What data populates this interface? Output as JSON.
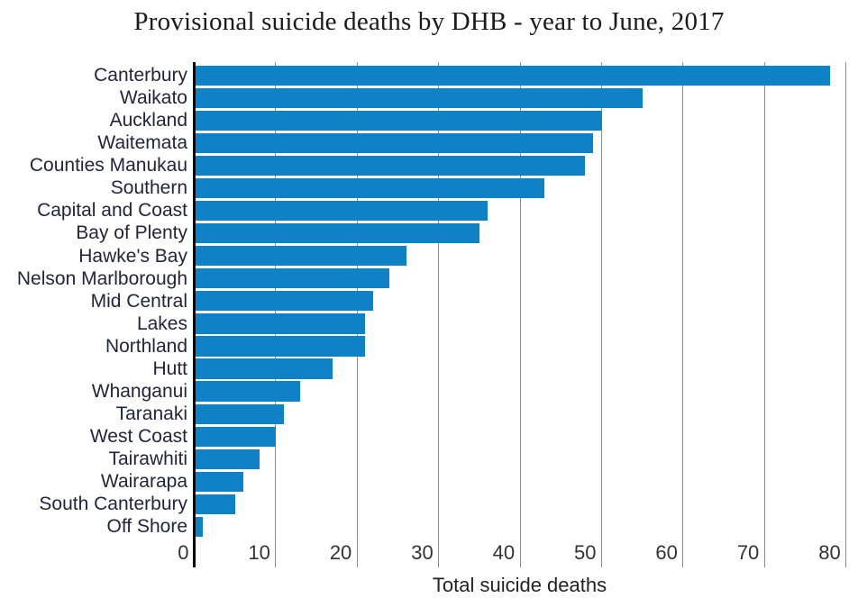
{
  "chart_data": {
    "type": "bar",
    "orientation": "horizontal",
    "title": "Provisional suicide deaths by DHB - year to June, 2017",
    "xlabel": "Total suicide deaths",
    "ylabel": "",
    "categories": [
      "Canterbury",
      "Waikato",
      "Auckland",
      "Waitemata",
      "Counties Manukau",
      "Southern",
      "Capital and Coast",
      "Bay of Plenty",
      "Hawke's Bay",
      "Nelson Marlborough",
      "Mid Central",
      "Lakes",
      "Northland",
      "Hutt",
      "Whanganui",
      "Taranaki",
      "West Coast",
      "Tairawhiti",
      "Wairarapa",
      "South Canterbury",
      "Off Shore"
    ],
    "values": [
      78,
      55,
      50,
      49,
      48,
      43,
      36,
      35,
      26,
      24,
      22,
      21,
      21,
      17,
      13,
      11,
      10,
      8,
      6,
      5,
      1
    ],
    "xticks": [
      0,
      10,
      20,
      30,
      40,
      50,
      60,
      70,
      80
    ],
    "xlim": [
      0,
      81.5
    ],
    "grid": true,
    "legend": false,
    "bar_color": "#0f81c7",
    "grid_color": "#8c8c8c",
    "axis_color": "#000000",
    "background": "#ffffff"
  }
}
